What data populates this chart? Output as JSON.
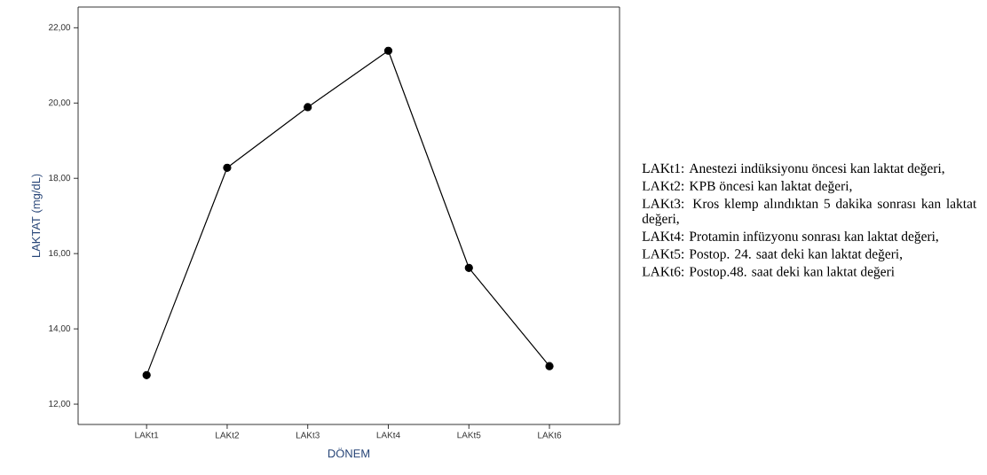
{
  "chart_data": {
    "type": "line",
    "xlabel": "DÖNEM",
    "ylabel": "LAKTAT (mg/dL)",
    "categories": [
      "LAKt1",
      "LAKt2",
      "LAKt3",
      "LAKt4",
      "LAKt5",
      "LAKt6"
    ],
    "values": [
      12.77,
      18.28,
      19.89,
      21.39,
      15.62,
      13.01
    ],
    "color": "#000000",
    "marker": "circle",
    "line_style": "solid",
    "grid": false,
    "ylim": [
      11.46,
      22.55
    ],
    "yticks": [
      {
        "value": 12,
        "label": "12,00"
      },
      {
        "value": 14,
        "label": "14,00"
      },
      {
        "value": 16,
        "label": "16,00"
      },
      {
        "value": 18,
        "label": "18,00"
      },
      {
        "value": 20,
        "label": "20,00"
      },
      {
        "value": 22,
        "label": "22,00"
      }
    ],
    "annotations": [
      "LAKt1: Anestezi indüksiyonu öncesi kan laktat değeri,",
      "LAKt2: KPB öncesi kan laktat değeri,",
      "LAKt3: Kros klemp alındıktan 5 dakika sonrası kan laktat değeri,",
      "LAKt4: Protamin infüzyonu sonrası kan laktat değeri,",
      "LAKt5: Postop. 24. saat deki kan laktat değeri,",
      "LAKt6: Postop.48. saat deki kan laktat değeri"
    ]
  }
}
